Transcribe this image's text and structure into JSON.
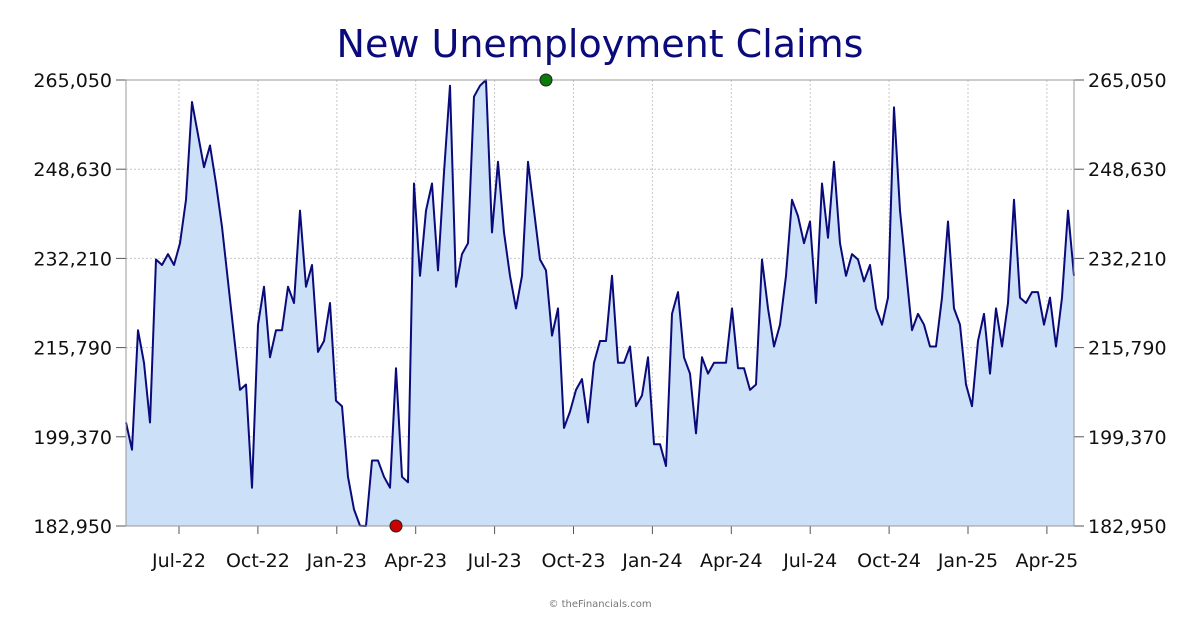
{
  "chart_data": {
    "type": "area",
    "title": "New Unemployment Claims",
    "credit": "© theFinancials.com",
    "xlabel": "",
    "ylabel": "",
    "y_ticks": [
      "182,950",
      "199,370",
      "215,790",
      "232,210",
      "248,630",
      "265,050"
    ],
    "ylim": [
      182950,
      265050
    ],
    "x_ticks": [
      "Jul-22",
      "Oct-22",
      "Jan-23",
      "Apr-23",
      "Jul-23",
      "Oct-23",
      "Jan-24",
      "Apr-24",
      "Jul-24",
      "Oct-24",
      "Jan-25",
      "Apr-25"
    ],
    "grid": true,
    "line_color": "#0a0a7a",
    "fill_color": "#cce0f7",
    "min_marker_color": "#cc0000",
    "max_marker_color": "#0a7a0a",
    "min_point": {
      "week": 45,
      "value": 182950
    },
    "max_point": {
      "week": 70,
      "value": 265050
    },
    "series": [
      {
        "values": [
          202000,
          197000,
          219000,
          213000,
          202000,
          232000,
          231000,
          233000,
          231000,
          235000,
          243000,
          261000,
          255000,
          249000,
          253000,
          246000,
          238000,
          228000,
          218000,
          208000,
          209000,
          190000,
          220000,
          227000,
          214000,
          219000,
          219000,
          227000,
          224000,
          241000,
          227000,
          231000,
          215000,
          217000,
          224000,
          206000,
          205000,
          192000,
          186000,
          183000,
          182950,
          195000,
          195000,
          192000,
          190000,
          212000,
          192000,
          191000,
          246000,
          229000,
          241000,
          246000,
          230000,
          248000,
          264000,
          227000,
          233000,
          235000,
          262000,
          264000,
          265050,
          237000,
          250000,
          237000,
          229000,
          223000,
          229000,
          250000,
          241000,
          232000,
          230000,
          218000,
          223000,
          201000,
          204000,
          208000,
          210000,
          202000,
          213000,
          217000,
          217000,
          229000,
          213000,
          213000,
          216000,
          205000,
          207000,
          214000,
          198000,
          198000,
          194000,
          222000,
          226000,
          214000,
          211000,
          200000,
          214000,
          211000,
          213000,
          213000,
          213000,
          223000,
          212000,
          212000,
          208000,
          209000,
          232000,
          223000,
          216000,
          220000,
          229000,
          243000,
          240000,
          235000,
          239000,
          224000,
          246000,
          236000,
          250000,
          235000,
          229000,
          233000,
          232000,
          228000,
          231000,
          223000,
          220000,
          225000,
          260000,
          241000,
          230000,
          219000,
          222000,
          220000,
          216000,
          216000,
          225000,
          239000,
          223000,
          220000,
          209000,
          205000,
          217000,
          222000,
          211000,
          223000,
          216000,
          224000,
          243000,
          225000,
          224000,
          226000,
          226000,
          220000,
          225000,
          216000,
          225000,
          241000,
          229000
        ]
      }
    ]
  }
}
